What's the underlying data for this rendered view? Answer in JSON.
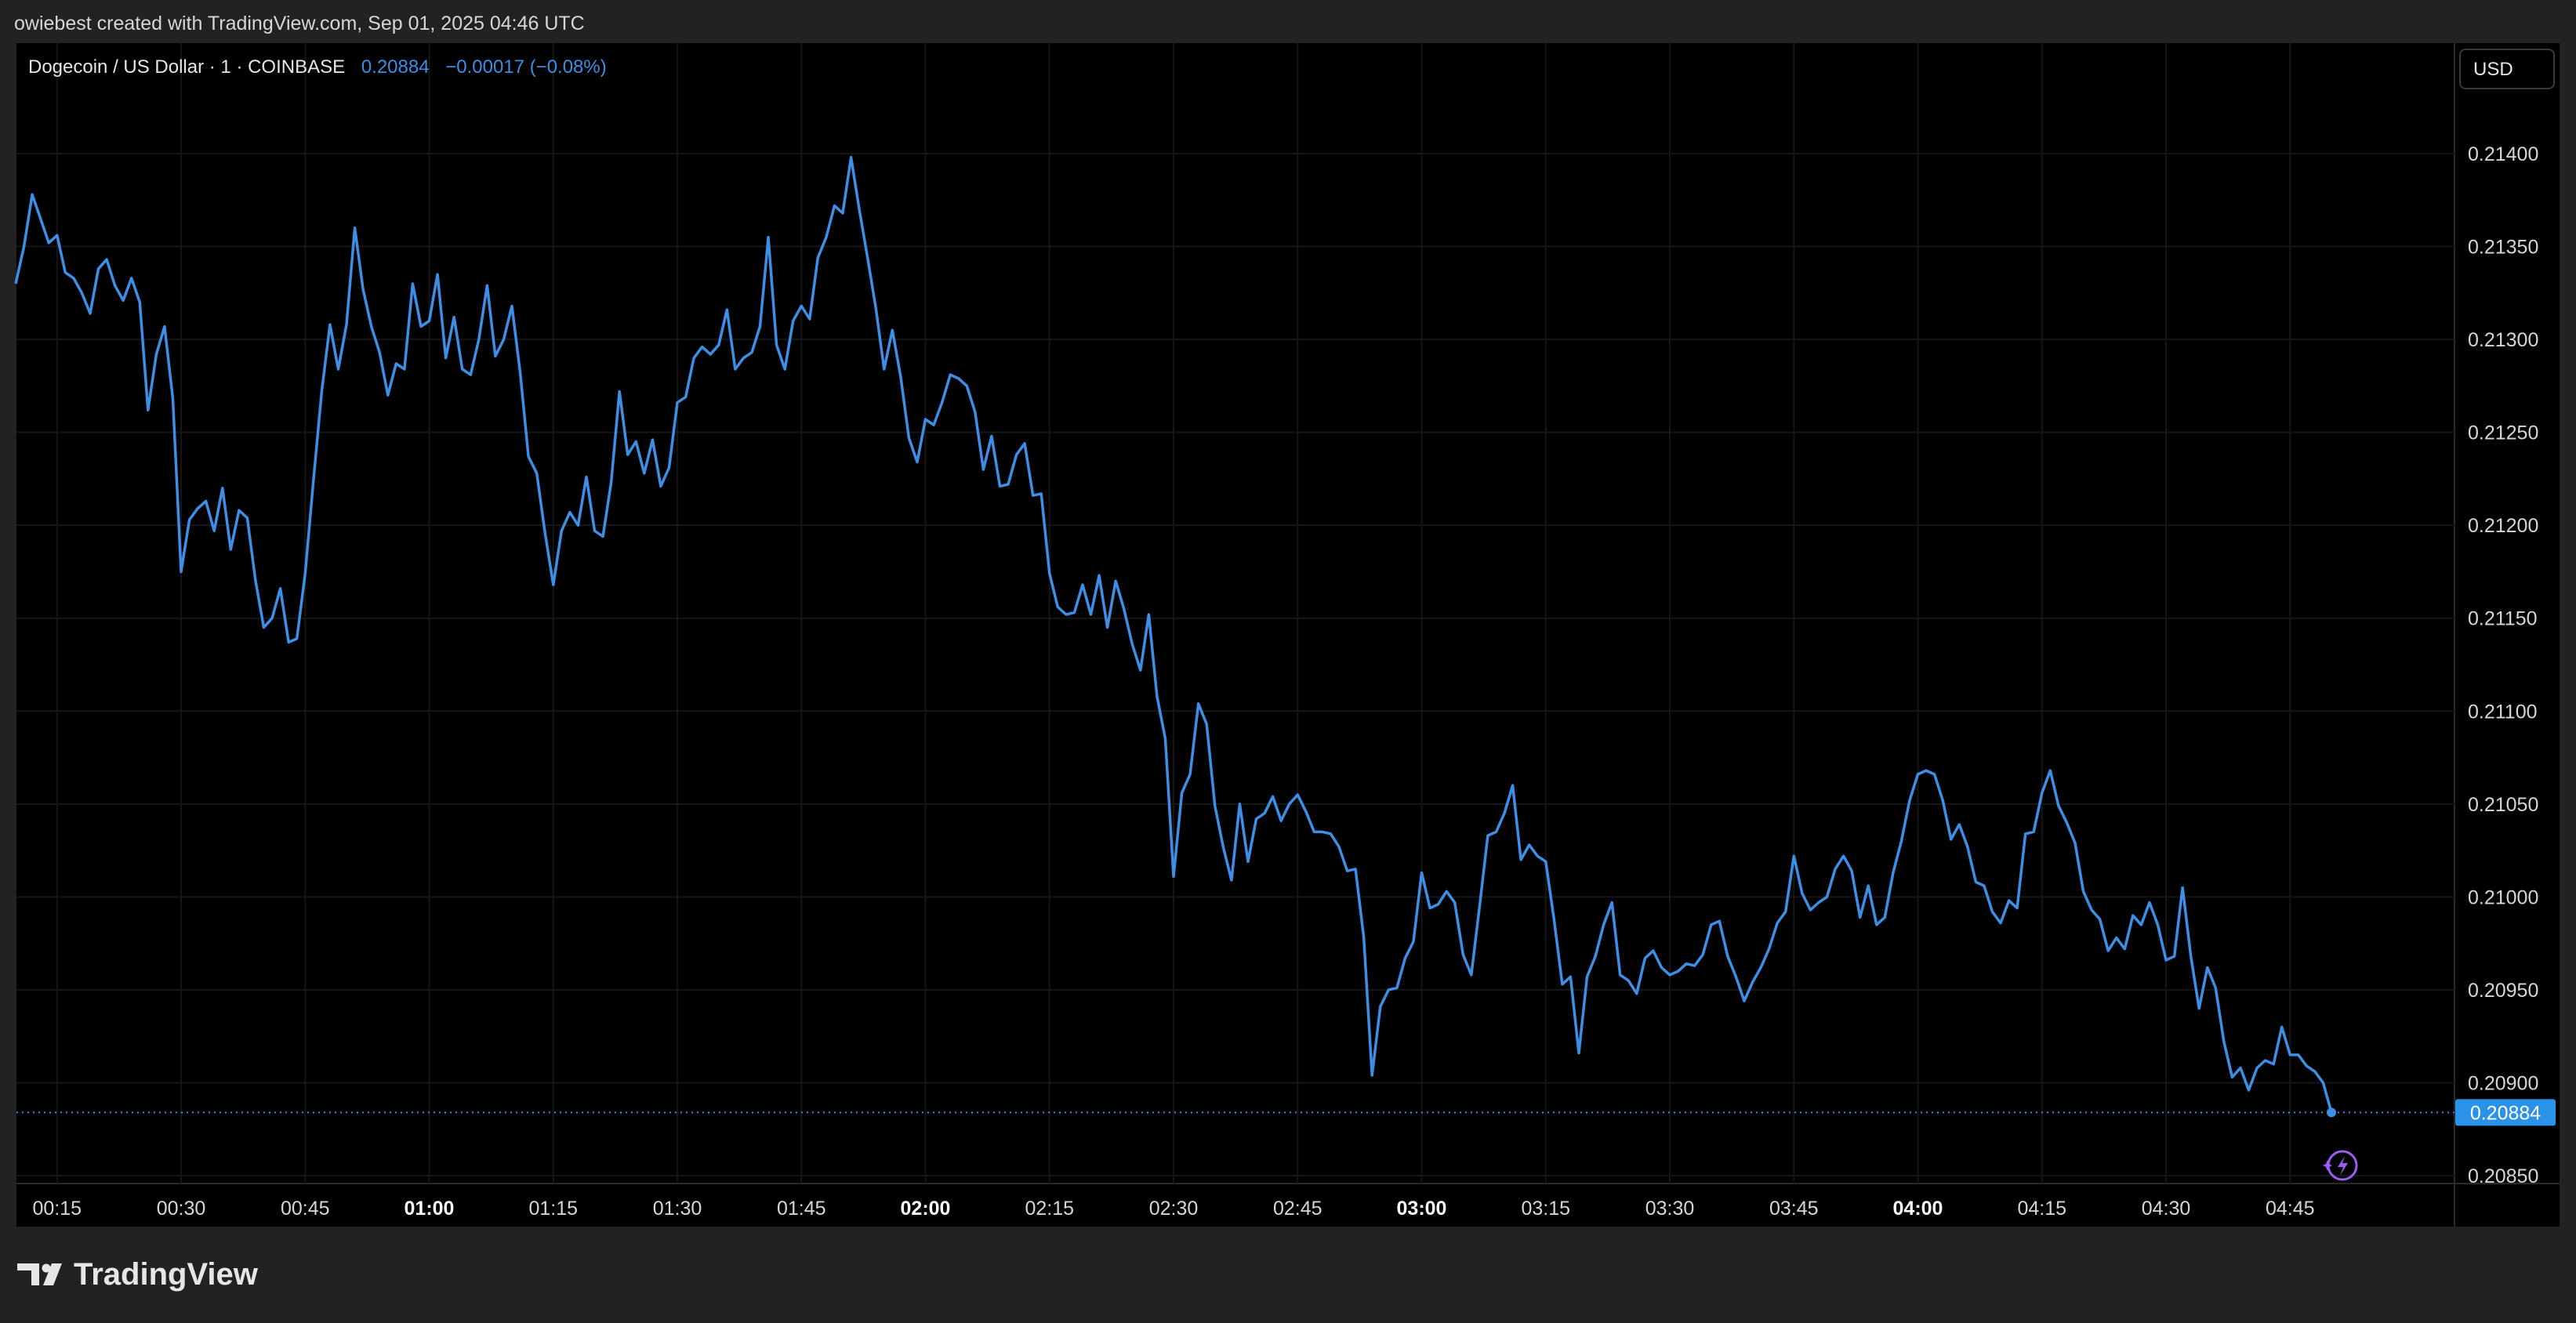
{
  "header": {
    "attribution": "owiebest created with TradingView.com, Sep 01, 2025 04:46 UTC"
  },
  "legend": {
    "symbol": "Dogecoin / US Dollar · 1 · COINBASE",
    "price": "0.20884",
    "change": "−0.00017 (−0.08%)"
  },
  "currency_button": "USD",
  "last_price_label": "0.20884",
  "brand": {
    "logo_text": "TradingView"
  },
  "colors": {
    "line": "#3d8ee6",
    "price_tag": "#2a92e8",
    "background": "#000000",
    "frame": "#222222"
  },
  "chart_data": {
    "type": "line",
    "title": "Dogecoin / US Dollar · 1 · COINBASE",
    "x_ticks": [
      {
        "t": 15,
        "label": "00:15",
        "bold": false
      },
      {
        "t": 30,
        "label": "00:30",
        "bold": false
      },
      {
        "t": 45,
        "label": "00:45",
        "bold": false
      },
      {
        "t": 60,
        "label": "01:00",
        "bold": true
      },
      {
        "t": 75,
        "label": "01:15",
        "bold": false
      },
      {
        "t": 90,
        "label": "01:30",
        "bold": false
      },
      {
        "t": 105,
        "label": "01:45",
        "bold": false
      },
      {
        "t": 120,
        "label": "02:00",
        "bold": true
      },
      {
        "t": 135,
        "label": "02:15",
        "bold": false
      },
      {
        "t": 150,
        "label": "02:30",
        "bold": false
      },
      {
        "t": 165,
        "label": "02:45",
        "bold": false
      },
      {
        "t": 180,
        "label": "03:00",
        "bold": true
      },
      {
        "t": 195,
        "label": "03:15",
        "bold": false
      },
      {
        "t": 210,
        "label": "03:30",
        "bold": false
      },
      {
        "t": 225,
        "label": "03:45",
        "bold": false
      },
      {
        "t": 240,
        "label": "04:00",
        "bold": true
      },
      {
        "t": 255,
        "label": "04:15",
        "bold": false
      },
      {
        "t": 270,
        "label": "04:30",
        "bold": false
      },
      {
        "t": 285,
        "label": "04:45",
        "bold": false
      }
    ],
    "y_ticks": [
      "0.21400",
      "0.21350",
      "0.21300",
      "0.21250",
      "0.21200",
      "0.21150",
      "0.21100",
      "0.21050",
      "0.21000",
      "0.20950",
      "0.20900",
      "0.20850"
    ],
    "ylim": [
      0.2085,
      0.214
    ],
    "xlim": [
      10,
      292.5
    ],
    "last_value": 0.20884,
    "grid": true,
    "series": [
      {
        "name": "DOGEUSD",
        "points": [
          [
            10,
            0.2133
          ],
          [
            11,
            0.2135
          ],
          [
            12,
            0.21378
          ],
          [
            13,
            0.21365
          ],
          [
            14,
            0.21352
          ],
          [
            15,
            0.21356
          ],
          [
            16,
            0.21336
          ],
          [
            17,
            0.21333
          ],
          [
            18,
            0.21325
          ],
          [
            19,
            0.21314
          ],
          [
            20,
            0.21338
          ],
          [
            21,
            0.21343
          ],
          [
            22,
            0.21329
          ],
          [
            23,
            0.21321
          ],
          [
            24,
            0.21333
          ],
          [
            25,
            0.2132
          ],
          [
            26,
            0.21262
          ],
          [
            27,
            0.21292
          ],
          [
            28,
            0.21307
          ],
          [
            29,
            0.21268
          ],
          [
            30,
            0.21175
          ],
          [
            31,
            0.21203
          ],
          [
            32,
            0.21209
          ],
          [
            33,
            0.21213
          ],
          [
            34,
            0.21197
          ],
          [
            35,
            0.2122
          ],
          [
            36,
            0.21187
          ],
          [
            37,
            0.21208
          ],
          [
            38,
            0.21204
          ],
          [
            39,
            0.2117
          ],
          [
            40,
            0.21145
          ],
          [
            41,
            0.2115
          ],
          [
            42,
            0.21166
          ],
          [
            43,
            0.21137
          ],
          [
            44,
            0.21139
          ],
          [
            45,
            0.21174
          ],
          [
            46,
            0.21224
          ],
          [
            47,
            0.21272
          ],
          [
            48,
            0.21308
          ],
          [
            49,
            0.21284
          ],
          [
            50,
            0.21308
          ],
          [
            51,
            0.2136
          ],
          [
            52,
            0.21327
          ],
          [
            53,
            0.21307
          ],
          [
            54,
            0.21293
          ],
          [
            55,
            0.2127
          ],
          [
            56,
            0.21287
          ],
          [
            57,
            0.21284
          ],
          [
            58,
            0.2133
          ],
          [
            59,
            0.21307
          ],
          [
            60,
            0.2131
          ],
          [
            61,
            0.21335
          ],
          [
            62,
            0.2129
          ],
          [
            63,
            0.21312
          ],
          [
            64,
            0.21284
          ],
          [
            65,
            0.21281
          ],
          [
            66,
            0.213
          ],
          [
            67,
            0.21329
          ],
          [
            68,
            0.21291
          ],
          [
            69,
            0.213
          ],
          [
            70,
            0.21318
          ],
          [
            71,
            0.21282
          ],
          [
            72,
            0.21237
          ],
          [
            73,
            0.21228
          ],
          [
            74,
            0.21196
          ],
          [
            75,
            0.21168
          ],
          [
            76,
            0.21197
          ],
          [
            77,
            0.21207
          ],
          [
            78,
            0.212
          ],
          [
            79,
            0.21226
          ],
          [
            80,
            0.21197
          ],
          [
            81,
            0.21194
          ],
          [
            82,
            0.21223
          ],
          [
            83,
            0.21272
          ],
          [
            84,
            0.21238
          ],
          [
            85,
            0.21245
          ],
          [
            86,
            0.21228
          ],
          [
            87,
            0.21246
          ],
          [
            88,
            0.21221
          ],
          [
            89,
            0.21231
          ],
          [
            90,
            0.21266
          ],
          [
            91,
            0.21269
          ],
          [
            92,
            0.2129
          ],
          [
            93,
            0.21296
          ],
          [
            94,
            0.21292
          ],
          [
            95,
            0.21297
          ],
          [
            96,
            0.21316
          ],
          [
            97,
            0.21284
          ],
          [
            98,
            0.2129
          ],
          [
            99,
            0.21293
          ],
          [
            100,
            0.21307
          ],
          [
            101,
            0.21355
          ],
          [
            102,
            0.21297
          ],
          [
            103,
            0.21284
          ],
          [
            104,
            0.2131
          ],
          [
            105,
            0.21318
          ],
          [
            106,
            0.21311
          ],
          [
            107,
            0.21344
          ],
          [
            108,
            0.21355
          ],
          [
            109,
            0.21372
          ],
          [
            110,
            0.21368
          ],
          [
            111,
            0.21398
          ],
          [
            112,
            0.2137
          ],
          [
            113,
            0.21344
          ],
          [
            114,
            0.21317
          ],
          [
            115,
            0.21284
          ],
          [
            116,
            0.21305
          ],
          [
            117,
            0.2128
          ],
          [
            118,
            0.21247
          ],
          [
            119,
            0.21234
          ],
          [
            120,
            0.21257
          ],
          [
            121,
            0.21254
          ],
          [
            122,
            0.21266
          ],
          [
            123,
            0.21281
          ],
          [
            124,
            0.21279
          ],
          [
            125,
            0.21275
          ],
          [
            126,
            0.21261
          ],
          [
            127,
            0.2123
          ],
          [
            128,
            0.21248
          ],
          [
            129,
            0.21221
          ],
          [
            130,
            0.21222
          ],
          [
            131,
            0.21238
          ],
          [
            132,
            0.21244
          ],
          [
            133,
            0.21216
          ],
          [
            134,
            0.21217
          ],
          [
            135,
            0.21174
          ],
          [
            136,
            0.21156
          ],
          [
            137,
            0.21152
          ],
          [
            138,
            0.21153
          ],
          [
            139,
            0.21168
          ],
          [
            140,
            0.21152
          ],
          [
            141,
            0.21173
          ],
          [
            142,
            0.21145
          ],
          [
            143,
            0.2117
          ],
          [
            144,
            0.21155
          ],
          [
            145,
            0.21136
          ],
          [
            146,
            0.21122
          ],
          [
            147,
            0.21152
          ],
          [
            148,
            0.21108
          ],
          [
            149,
            0.21085
          ],
          [
            150,
            0.21011
          ],
          [
            151,
            0.21056
          ],
          [
            152,
            0.21066
          ],
          [
            153,
            0.21104
          ],
          [
            154,
            0.21093
          ],
          [
            155,
            0.21049
          ],
          [
            156,
            0.21027
          ],
          [
            157,
            0.21009
          ],
          [
            158,
            0.2105
          ],
          [
            159,
            0.21019
          ],
          [
            160,
            0.21042
          ],
          [
            161,
            0.21045
          ],
          [
            162,
            0.21054
          ],
          [
            163,
            0.21041
          ],
          [
            164,
            0.2105
          ],
          [
            165,
            0.21055
          ],
          [
            166,
            0.21046
          ],
          [
            167,
            0.21035
          ],
          [
            168,
            0.21035
          ],
          [
            169,
            0.21034
          ],
          [
            170,
            0.21027
          ],
          [
            171,
            0.21014
          ],
          [
            172,
            0.21015
          ],
          [
            173,
            0.20978
          ],
          [
            174,
            0.20904
          ],
          [
            175,
            0.20941
          ],
          [
            176,
            0.2095
          ],
          [
            177,
            0.20951
          ],
          [
            178,
            0.20967
          ],
          [
            179,
            0.20976
          ],
          [
            180,
            0.21013
          ],
          [
            181,
            0.20994
          ],
          [
            182,
            0.20996
          ],
          [
            183,
            0.21003
          ],
          [
            184,
            0.20997
          ],
          [
            185,
            0.20969
          ],
          [
            186,
            0.20958
          ],
          [
            187,
            0.20995
          ],
          [
            188,
            0.21033
          ],
          [
            189,
            0.21035
          ],
          [
            190,
            0.21045
          ],
          [
            191,
            0.2106
          ],
          [
            192,
            0.2102
          ],
          [
            193,
            0.21028
          ],
          [
            194,
            0.21022
          ],
          [
            195,
            0.21019
          ],
          [
            196,
            0.20988
          ],
          [
            197,
            0.20953
          ],
          [
            198,
            0.20957
          ],
          [
            199,
            0.20916
          ],
          [
            200,
            0.20957
          ],
          [
            201,
            0.20968
          ],
          [
            202,
            0.20985
          ],
          [
            203,
            0.20997
          ],
          [
            204,
            0.20958
          ],
          [
            205,
            0.20955
          ],
          [
            206,
            0.20948
          ],
          [
            207,
            0.20967
          ],
          [
            208,
            0.20971
          ],
          [
            209,
            0.20962
          ],
          [
            210,
            0.20958
          ],
          [
            211,
            0.2096
          ],
          [
            212,
            0.20964
          ],
          [
            213,
            0.20963
          ],
          [
            214,
            0.20969
          ],
          [
            215,
            0.20985
          ],
          [
            216,
            0.20987
          ],
          [
            217,
            0.20968
          ],
          [
            218,
            0.20957
          ],
          [
            219,
            0.20944
          ],
          [
            220,
            0.20954
          ],
          [
            221,
            0.20962
          ],
          [
            222,
            0.20972
          ],
          [
            223,
            0.20986
          ],
          [
            224,
            0.20992
          ],
          [
            225,
            0.21022
          ],
          [
            226,
            0.21002
          ],
          [
            227,
            0.20993
          ],
          [
            228,
            0.20997
          ],
          [
            229,
            0.21
          ],
          [
            230,
            0.21015
          ],
          [
            231,
            0.21022
          ],
          [
            232,
            0.21014
          ],
          [
            233,
            0.20989
          ],
          [
            234,
            0.21006
          ],
          [
            235,
            0.20985
          ],
          [
            236,
            0.20989
          ],
          [
            237,
            0.21013
          ],
          [
            238,
            0.2103
          ],
          [
            239,
            0.21052
          ],
          [
            240,
            0.21066
          ],
          [
            241,
            0.21068
          ],
          [
            242,
            0.21066
          ],
          [
            243,
            0.21052
          ],
          [
            244,
            0.21031
          ],
          [
            245,
            0.21039
          ],
          [
            246,
            0.21027
          ],
          [
            247,
            0.21008
          ],
          [
            248,
            0.21006
          ],
          [
            249,
            0.20992
          ],
          [
            250,
            0.20986
          ],
          [
            251,
            0.20998
          ],
          [
            252,
            0.20994
          ],
          [
            253,
            0.21034
          ],
          [
            254,
            0.21035
          ],
          [
            255,
            0.21056
          ],
          [
            256,
            0.21068
          ],
          [
            257,
            0.21049
          ],
          [
            258,
            0.2104
          ],
          [
            259,
            0.21029
          ],
          [
            260,
            0.21003
          ],
          [
            261,
            0.20993
          ],
          [
            262,
            0.20988
          ],
          [
            263,
            0.20971
          ],
          [
            264,
            0.20978
          ],
          [
            265,
            0.20972
          ],
          [
            266,
            0.2099
          ],
          [
            267,
            0.20985
          ],
          [
            268,
            0.20997
          ],
          [
            269,
            0.20985
          ],
          [
            270,
            0.20966
          ],
          [
            271,
            0.20968
          ],
          [
            272,
            0.21005
          ],
          [
            273,
            0.20968
          ],
          [
            274,
            0.2094
          ],
          [
            275,
            0.20962
          ],
          [
            276,
            0.20951
          ],
          [
            277,
            0.20922
          ],
          [
            278,
            0.20903
          ],
          [
            279,
            0.20908
          ],
          [
            280,
            0.20896
          ],
          [
            281,
            0.20908
          ],
          [
            282,
            0.20912
          ],
          [
            283,
            0.2091
          ],
          [
            284,
            0.2093
          ],
          [
            285,
            0.20915
          ],
          [
            286,
            0.20915
          ],
          [
            287,
            0.20909
          ],
          [
            288,
            0.20906
          ],
          [
            289,
            0.209
          ],
          [
            290,
            0.20884
          ]
        ]
      }
    ]
  }
}
